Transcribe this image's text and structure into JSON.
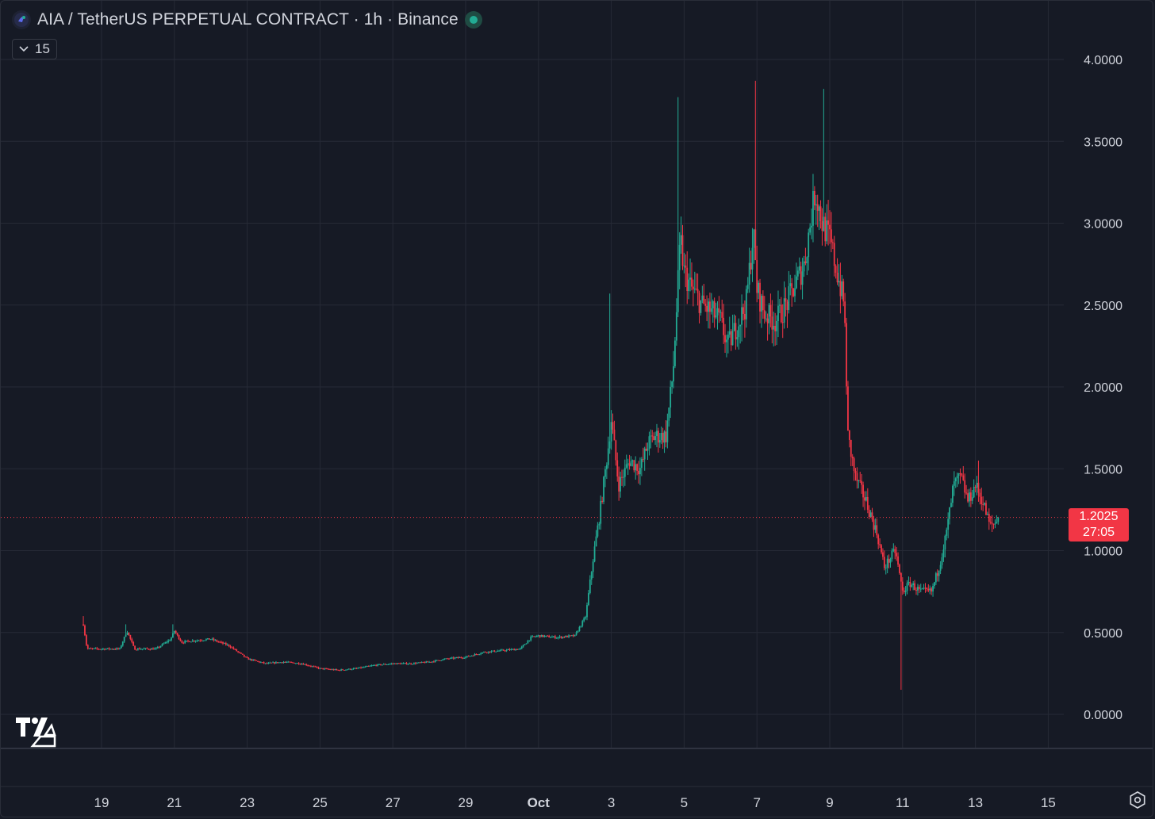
{
  "header": {
    "title": "AIA / TetherUS PERPETUAL CONTRACT · 1h · Binance",
    "status_color": "#22ab94"
  },
  "indicator_toggle": {
    "count": "15"
  },
  "price_tag": {
    "price": "1.2025",
    "countdown": "27:05",
    "color": "#f23645"
  },
  "colors": {
    "up": "#22ab94",
    "down": "#f23645",
    "background": "#161a25",
    "grid": "#262a36",
    "text": "#d1d4dc"
  },
  "chart_data": {
    "type": "candlestick",
    "interval": "1h",
    "y_ticks": [
      "0.0000",
      "0.5000",
      "1.0000",
      "1.5000",
      "2.0000",
      "2.5000",
      "3.0000",
      "3.5000",
      "4.0000"
    ],
    "ylim": [
      -0.2,
      4.45
    ],
    "x_ticks": [
      {
        "day": 19,
        "label": "19"
      },
      {
        "day": 21,
        "label": "21"
      },
      {
        "day": 23,
        "label": "23"
      },
      {
        "day": 25,
        "label": "25"
      },
      {
        "day": 27,
        "label": "27"
      },
      {
        "day": 29,
        "label": "29"
      },
      {
        "day": 31,
        "label": "Oct",
        "bold": true
      },
      {
        "day": 33,
        "label": "3"
      },
      {
        "day": 35,
        "label": "5"
      },
      {
        "day": 37,
        "label": "7"
      },
      {
        "day": 39,
        "label": "9"
      },
      {
        "day": 41,
        "label": "11"
      },
      {
        "day": 43,
        "label": "13"
      },
      {
        "day": 45,
        "label": "15"
      }
    ],
    "xlim": [
      17.0,
      46.5
    ],
    "grid": true,
    "last_price": 1.2025,
    "path_points": [
      [
        18.5,
        0.55
      ],
      [
        18.6,
        0.4
      ],
      [
        19.0,
        0.4
      ],
      [
        19.5,
        0.4
      ],
      [
        19.7,
        0.51
      ],
      [
        19.9,
        0.4
      ],
      [
        20.5,
        0.4
      ],
      [
        20.9,
        0.46
      ],
      [
        21.0,
        0.51
      ],
      [
        21.2,
        0.44
      ],
      [
        21.5,
        0.45
      ],
      [
        22.0,
        0.46
      ],
      [
        22.5,
        0.42
      ],
      [
        23.0,
        0.34
      ],
      [
        23.5,
        0.31
      ],
      [
        24.0,
        0.32
      ],
      [
        24.5,
        0.31
      ],
      [
        25.0,
        0.28
      ],
      [
        25.5,
        0.27
      ],
      [
        26.0,
        0.28
      ],
      [
        26.5,
        0.3
      ],
      [
        27.0,
        0.31
      ],
      [
        27.5,
        0.31
      ],
      [
        28.0,
        0.32
      ],
      [
        28.5,
        0.34
      ],
      [
        29.0,
        0.35
      ],
      [
        29.5,
        0.38
      ],
      [
        30.0,
        0.39
      ],
      [
        30.5,
        0.4
      ],
      [
        30.8,
        0.47
      ],
      [
        31.0,
        0.48
      ],
      [
        31.5,
        0.47
      ],
      [
        32.0,
        0.48
      ],
      [
        32.3,
        0.6
      ],
      [
        32.5,
        0.95
      ],
      [
        32.7,
        1.25
      ],
      [
        32.9,
        1.6
      ],
      [
        33.0,
        1.8
      ],
      [
        33.2,
        1.4
      ],
      [
        33.5,
        1.55
      ],
      [
        33.8,
        1.5
      ],
      [
        34.0,
        1.65
      ],
      [
        34.2,
        1.7
      ],
      [
        34.5,
        1.7
      ],
      [
        34.7,
        2.1
      ],
      [
        34.9,
        2.9
      ],
      [
        35.0,
        2.7
      ],
      [
        35.2,
        2.6
      ],
      [
        35.5,
        2.5
      ],
      [
        35.8,
        2.45
      ],
      [
        36.0,
        2.4
      ],
      [
        36.2,
        2.25
      ],
      [
        36.5,
        2.4
      ],
      [
        36.7,
        2.5
      ],
      [
        36.9,
        2.95
      ],
      [
        37.0,
        2.6
      ],
      [
        37.2,
        2.45
      ],
      [
        37.5,
        2.4
      ],
      [
        37.8,
        2.5
      ],
      [
        38.0,
        2.6
      ],
      [
        38.3,
        2.75
      ],
      [
        38.6,
        3.2
      ],
      [
        38.8,
        3.0
      ],
      [
        39.0,
        2.9
      ],
      [
        39.2,
        2.7
      ],
      [
        39.4,
        2.5
      ],
      [
        39.5,
        1.7
      ],
      [
        39.7,
        1.45
      ],
      [
        40.0,
        1.3
      ],
      [
        40.3,
        1.1
      ],
      [
        40.5,
        0.9
      ],
      [
        40.8,
        1.0
      ],
      [
        41.0,
        0.75
      ],
      [
        41.2,
        0.8
      ],
      [
        41.5,
        0.75
      ],
      [
        41.8,
        0.75
      ],
      [
        42.0,
        0.9
      ],
      [
        42.2,
        1.1
      ],
      [
        42.4,
        1.4
      ],
      [
        42.6,
        1.45
      ],
      [
        42.8,
        1.3
      ],
      [
        43.0,
        1.4
      ],
      [
        43.2,
        1.3
      ],
      [
        43.4,
        1.15
      ],
      [
        43.6,
        1.18
      ],
      [
        43.65,
        1.2025
      ]
    ],
    "spikes": [
      {
        "day": 18.5,
        "high": 0.6
      },
      {
        "day": 19.65,
        "high": 0.55
      },
      {
        "day": 20.95,
        "high": 0.55
      },
      {
        "day": 32.95,
        "high": 2.57
      },
      {
        "day": 34.85,
        "high": 3.77
      },
      {
        "day": 36.95,
        "high": 3.87
      },
      {
        "day": 38.85,
        "high": 3.82
      },
      {
        "day": 40.95,
        "low": 0.15
      },
      {
        "day": 43.1,
        "high": 1.55
      }
    ]
  }
}
